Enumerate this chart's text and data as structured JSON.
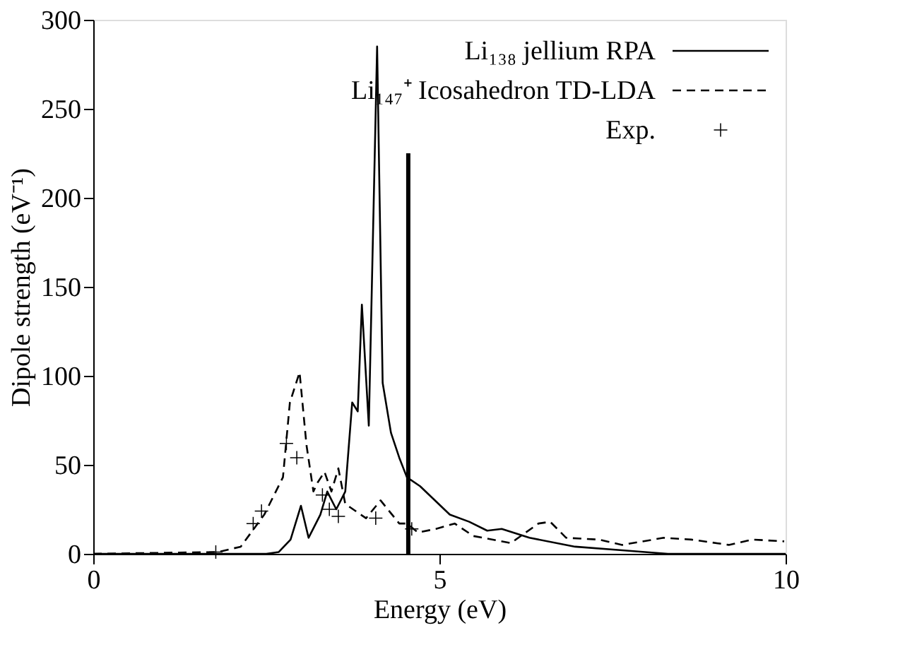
{
  "chart_data": {
    "type": "line",
    "xlabel": "Energy (eV)",
    "ylabel": "Dipole strength (eV⁻¹)",
    "xlim": [
      0,
      10
    ],
    "xticks": [
      0,
      5,
      10
    ],
    "ylim": [
      0,
      300
    ],
    "yticks": [
      0,
      50,
      100,
      150,
      200,
      250,
      300
    ],
    "grid": false,
    "legend": "top right",
    "series": [
      {
        "name": "Li₁₃₈ jellium RPA",
        "color": "#000000",
        "line_style": "solid",
        "x": [
          0,
          2.5,
          2.68,
          2.85,
          3.0,
          3.11,
          3.28,
          3.38,
          3.51,
          3.64,
          3.74,
          3.82,
          3.88,
          3.98,
          4.1,
          4.18,
          4.3,
          4.42,
          4.53,
          4.72,
          5.15,
          5.43,
          5.69,
          5.9,
          6.3,
          6.96,
          7.64,
          8.3,
          10
        ],
        "values": [
          0,
          0,
          1,
          8,
          27,
          9,
          22,
          35,
          25,
          35,
          85,
          80,
          140,
          72,
          285,
          96,
          68,
          54,
          43,
          38,
          22,
          18,
          13,
          14,
          9,
          4,
          2,
          0,
          0
        ]
      },
      {
        "name": "Li₁₄₇⁺ Icosahedron TD-LDA",
        "color": "#000000",
        "line_style": "dashed",
        "x": [
          0,
          1.8,
          2.13,
          2.47,
          2.74,
          2.84,
          2.98,
          3.08,
          3.18,
          3.24,
          3.34,
          3.44,
          3.54,
          3.64,
          3.94,
          4.15,
          4.42,
          4.53,
          4.69,
          4.95,
          5.22,
          5.49,
          6.03,
          6.43,
          6.6,
          6.83,
          7.3,
          7.64,
          8.24,
          8.64,
          9.18,
          9.52,
          9.98
        ],
        "values": [
          0,
          1,
          4,
          22,
          43,
          85,
          102,
          61,
          35,
          40,
          46,
          35,
          48,
          28,
          20,
          30,
          17,
          17,
          12,
          14,
          17,
          10,
          6,
          17,
          18,
          9,
          8,
          5,
          9,
          8,
          5,
          8,
          7
        ]
      },
      {
        "name": "Exp.",
        "type": "scatter",
        "marker": "cross",
        "color": "#000000",
        "x": [
          1.77,
          2.31,
          2.43,
          2.79,
          2.94,
          3.31,
          3.41,
          3.54,
          4.08,
          4.6
        ],
        "values": [
          1,
          17,
          24,
          62,
          54,
          33,
          25,
          21,
          20,
          14
        ]
      },
      {
        "color": "#000000",
        "line_style": "solid",
        "x": [
          4.55,
          4.55
        ],
        "values": [
          0,
          225
        ]
      }
    ]
  }
}
